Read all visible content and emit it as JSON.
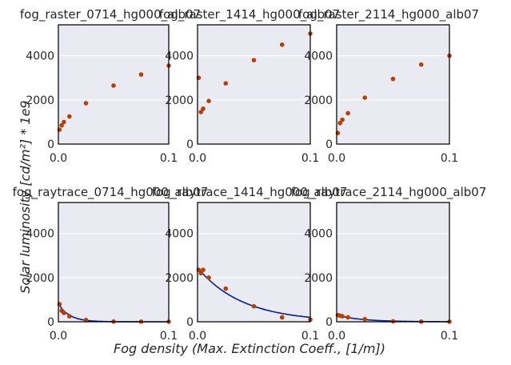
{
  "chart_data": {
    "type": "scatter",
    "xlabel": "Fog density (Max. Extinction Coeff., [1/m])",
    "ylabel": "Solar luminosity [cd/m²] * 1e9",
    "xlim": [
      0,
      0.1
    ],
    "ylim": [
      0,
      5400
    ],
    "x_ticks": [
      "0.0",
      "0.1"
    ],
    "y_ticks": [
      "0",
      "2000",
      "4000"
    ],
    "grid": true,
    "background": "#eaeaf2",
    "point_color": "#b5400a",
    "curve_color": "#0a1e8c",
    "panels": [
      {
        "title": "fog_raster_0714_hg000_alb07",
        "points": [
          [
            0.001,
            650
          ],
          [
            0.003,
            850
          ],
          [
            0.005,
            1000
          ],
          [
            0.01,
            1250
          ],
          [
            0.025,
            1850
          ],
          [
            0.05,
            2650
          ],
          [
            0.075,
            3150
          ],
          [
            0.1,
            3550
          ]
        ],
        "fit": null
      },
      {
        "title": "fog_raster_1414_hg000_alb07",
        "points": [
          [
            0.001,
            3000
          ],
          [
            0.003,
            1450
          ],
          [
            0.005,
            1600
          ],
          [
            0.01,
            1950
          ],
          [
            0.025,
            2750
          ],
          [
            0.05,
            3800
          ],
          [
            0.075,
            4500
          ],
          [
            0.1,
            5000
          ]
        ],
        "fit": null
      },
      {
        "title": "fog_raster_2114_hg000_alb07",
        "points": [
          [
            0.001,
            500
          ],
          [
            0.003,
            950
          ],
          [
            0.005,
            1100
          ],
          [
            0.01,
            1400
          ],
          [
            0.025,
            2100
          ],
          [
            0.05,
            2950
          ],
          [
            0.075,
            3600
          ],
          [
            0.1,
            4000
          ]
        ],
        "fit": null
      },
      {
        "title": "fog_raytrace_0714_hg000_alb07",
        "points": [
          [
            0.001,
            800
          ],
          [
            0.003,
            500
          ],
          [
            0.005,
            400
          ],
          [
            0.01,
            250
          ],
          [
            0.025,
            80
          ],
          [
            0.05,
            10
          ],
          [
            0.075,
            5
          ],
          [
            0.1,
            2
          ]
        ],
        "fit": {
          "a": 820,
          "b": 100
        }
      },
      {
        "title": "fog_raytrace_1414_hg000_alb07",
        "points": [
          [
            0.001,
            2350
          ],
          [
            0.003,
            2200
          ],
          [
            0.005,
            2350
          ],
          [
            0.01,
            2000
          ],
          [
            0.025,
            1500
          ],
          [
            0.05,
            700
          ],
          [
            0.075,
            200
          ],
          [
            0.1,
            100
          ]
        ],
        "fit": {
          "a": 2450,
          "b": 25
        }
      },
      {
        "title": "fog_raytrace_2114_hg000_alb07",
        "points": [
          [
            0.001,
            300
          ],
          [
            0.003,
            280
          ],
          [
            0.005,
            250
          ],
          [
            0.01,
            200
          ],
          [
            0.025,
            120
          ],
          [
            0.05,
            20
          ],
          [
            0.075,
            5
          ],
          [
            0.1,
            2
          ]
        ],
        "fit": {
          "a": 300,
          "b": 45
        }
      }
    ]
  }
}
